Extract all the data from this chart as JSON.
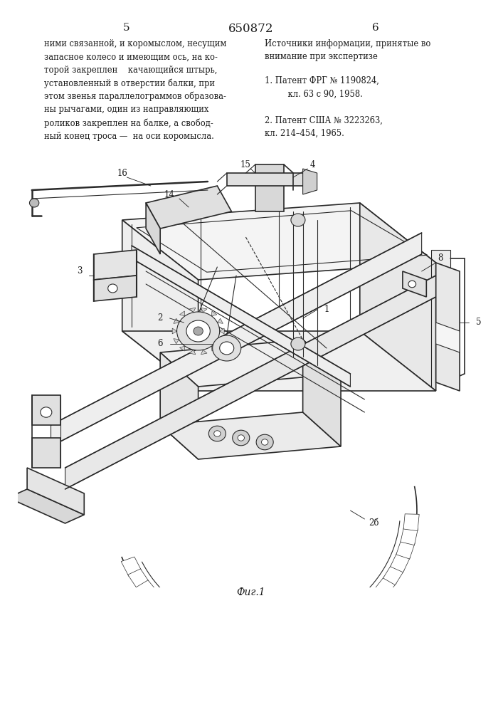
{
  "page_number_center": "650872",
  "page_number_left": "5",
  "page_number_right": "6",
  "left_column_text": [
    "ними связанной, и коромыслом, несущим",
    "запасное колесо и имеющим ось, на ко-",
    "торой закреплен    качающийся штырь,",
    "установленный в отверстии балки, при",
    "этом звенья параллелограммов образова-",
    "ны рычагами, один из направляющих",
    "роликов закреплен на балке, а свобод-",
    "ный конец троса —  на оси коромысла."
  ],
  "right_column_title": "Источники информации, принятые во",
  "right_column_title2": "внимание при экспертизе",
  "right_column_refs": [
    "1. Патент ФРГ № 1190824,",
    "    кл. 63 с 90, 1958.",
    "",
    "2. Патент США № 3223263,",
    "кл. 214–454, 1965."
  ],
  "figure_caption": "Фиг.1",
  "bg_color": "#ffffff",
  "text_color": "#1a1a1a",
  "drawing_color": "#2a2a2a"
}
